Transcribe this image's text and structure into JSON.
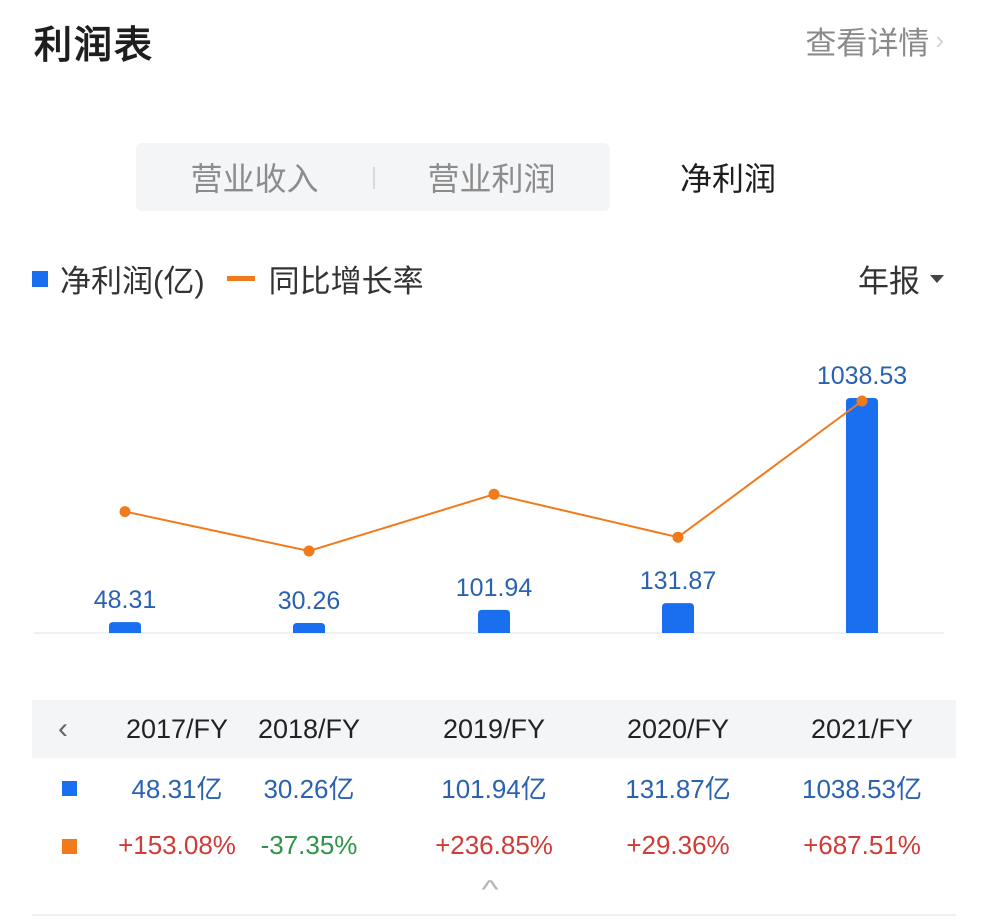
{
  "header": {
    "title": "利润表",
    "detail_label": "查看详情",
    "detail_icon": "chevron-right-icon"
  },
  "tabs": [
    {
      "label": "营业收入",
      "active": false
    },
    {
      "label": "营业利润",
      "active": false
    },
    {
      "label": "净利润",
      "active": true
    }
  ],
  "legend": {
    "bar_label": "净利润(亿)",
    "line_label": "同比增长率"
  },
  "period": {
    "label": "年报",
    "icon": "caret-down-icon"
  },
  "colors": {
    "bar": "#1a6ff0",
    "line": "#f07a1c",
    "value_text": "#2a62b0",
    "positive": "#cf3b37",
    "negative": "#2e9448"
  },
  "chart_data": {
    "type": "bar",
    "categories": [
      "2017/FY",
      "2018/FY",
      "2019/FY",
      "2020/FY",
      "2021/FY"
    ],
    "series": [
      {
        "name": "净利润(亿)",
        "type": "bar",
        "values": [
          48.31,
          30.26,
          101.94,
          131.87,
          1038.53
        ],
        "labels": [
          "48.31",
          "30.26",
          "101.94",
          "131.87",
          "1038.53"
        ]
      },
      {
        "name": "同比增长率",
        "type": "line",
        "values": [
          153.08,
          -37.35,
          236.85,
          29.36,
          687.51
        ]
      }
    ]
  },
  "table": {
    "back_icon": "chevron-left-icon",
    "headers": [
      "2017/FY",
      "2018/FY",
      "2019/FY",
      "2020/FY",
      "2021/FY"
    ],
    "values": [
      "48.31亿",
      "30.26亿",
      "101.94亿",
      "131.87亿",
      "1038.53亿"
    ],
    "growth": [
      "+153.08%",
      "-37.35%",
      "+236.85%",
      "+29.36%",
      "+687.51%"
    ],
    "expand_icon": "chevron-up-icon"
  }
}
